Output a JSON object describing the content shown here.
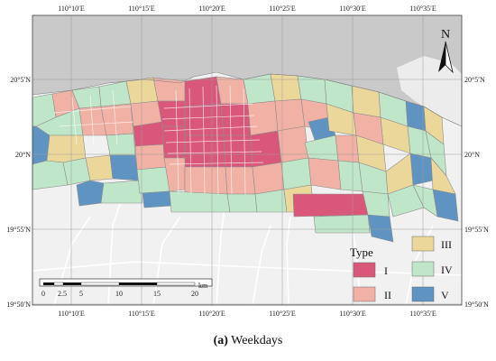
{
  "map": {
    "longitude_labels": [
      "110°10′E",
      "110°15′E",
      "110°20′E",
      "110°25′E",
      "110°30′E",
      "110°35′E"
    ],
    "latitude_labels": [
      "20°5′N",
      "20°N",
      "19°55′N",
      "19°50′N"
    ],
    "north_label": "N",
    "scale_bar": {
      "ticks": [
        "0",
        "2.5",
        "5",
        "10",
        "15",
        "20"
      ],
      "unit": "km"
    },
    "colors": {
      "sea": "#c9c9c9",
      "land": "#f1f1f1",
      "road": "#ffffff",
      "zone_outline": "#8d8d8d",
      "grid": "#9a9a9a"
    },
    "legend": {
      "title": "Type",
      "items": [
        {
          "label": "I",
          "color": "#d9587a"
        },
        {
          "label": "II",
          "color": "#f2b1a5"
        },
        {
          "label": "III",
          "color": "#ecd79a"
        },
        {
          "label": "IV",
          "color": "#bfe6c8"
        },
        {
          "label": "V",
          "color": "#5f94c2"
        }
      ]
    }
  },
  "caption": {
    "label": "(a)",
    "text": " Weekdays"
  }
}
